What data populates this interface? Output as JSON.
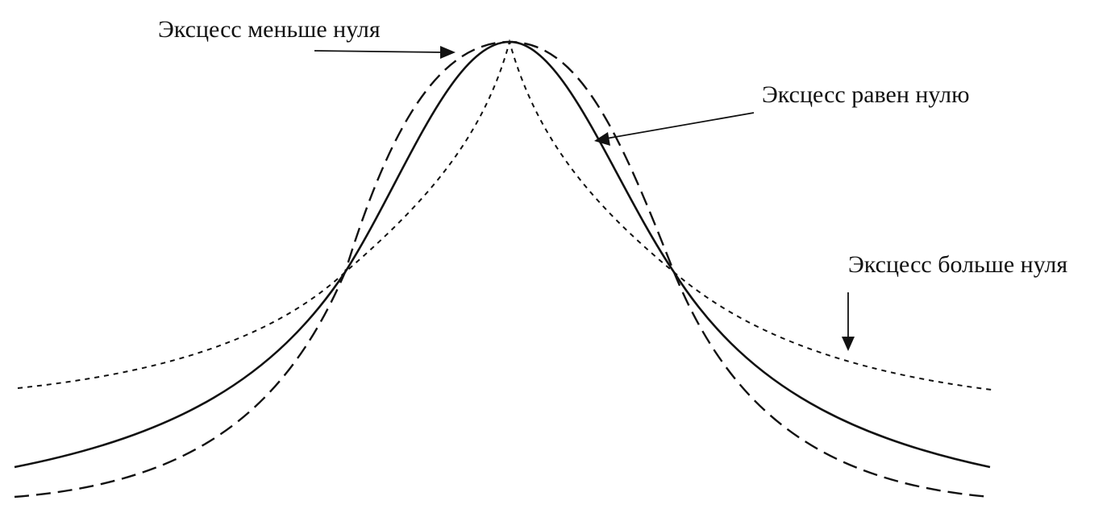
{
  "labels": {
    "negative_kurtosis": "Эксцесс меньше нуля",
    "zero_kurtosis": "Эксцесс равен нулю",
    "positive_kurtosis": "Эксцесс больше нуля"
  },
  "colors": {
    "ink": "#111111",
    "background": "#ffffff"
  }
}
